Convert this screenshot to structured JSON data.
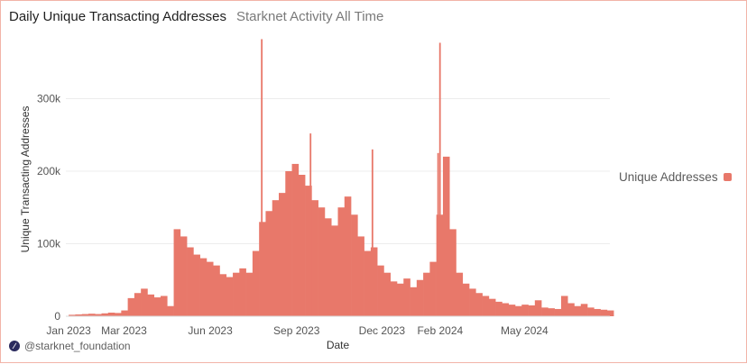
{
  "header": {
    "title": "Daily Unique Transacting Addresses",
    "subtitle": "Starknet Activity All Time"
  },
  "footer": {
    "handle": "@starknet_foundation",
    "logo_icon": "starknet-logo-icon"
  },
  "chart_data": {
    "type": "bar",
    "title": "Daily Unique Transacting Addresses",
    "subtitle": "Starknet Activity All Time",
    "xlabel": "Date",
    "ylabel": "Unique Transacting Addresses",
    "ylim": [
      0,
      390000
    ],
    "yticks": [
      0,
      100000,
      200000,
      300000
    ],
    "ytick_labels": [
      "0",
      "100k",
      "200k",
      "300k"
    ],
    "xticks": [
      "Jan 2023",
      "Mar 2023",
      "Jun 2023",
      "Sep 2023",
      "Dec 2023",
      "Feb 2024",
      "May 2024"
    ],
    "xtick_dates": [
      "2023-01-01",
      "2023-03-01",
      "2023-06-01",
      "2023-09-01",
      "2023-12-01",
      "2024-02-01",
      "2024-05-01"
    ],
    "date_start": "2022-12-29",
    "date_end": "2024-07-31",
    "grid": true,
    "legend": "right",
    "bar_color": "#e8786a",
    "series": [
      {
        "name": "Unique Addresses",
        "granularity": "weekly average",
        "x": [
          "2023-01-01",
          "2023-01-08",
          "2023-01-15",
          "2023-01-22",
          "2023-01-29",
          "2023-02-05",
          "2023-02-12",
          "2023-02-19",
          "2023-02-26",
          "2023-03-05",
          "2023-03-12",
          "2023-03-19",
          "2023-03-26",
          "2023-04-02",
          "2023-04-09",
          "2023-04-16",
          "2023-04-23",
          "2023-04-30",
          "2023-05-07",
          "2023-05-14",
          "2023-05-21",
          "2023-05-28",
          "2023-06-04",
          "2023-06-11",
          "2023-06-18",
          "2023-06-25",
          "2023-07-02",
          "2023-07-09",
          "2023-07-16",
          "2023-07-23",
          "2023-07-30",
          "2023-08-06",
          "2023-08-13",
          "2023-08-20",
          "2023-08-27",
          "2023-09-03",
          "2023-09-10",
          "2023-09-17",
          "2023-09-24",
          "2023-10-01",
          "2023-10-08",
          "2023-10-15",
          "2023-10-22",
          "2023-10-29",
          "2023-11-05",
          "2023-11-12",
          "2023-11-19",
          "2023-11-26",
          "2023-12-03",
          "2023-12-10",
          "2023-12-17",
          "2023-12-24",
          "2023-12-31",
          "2024-01-07",
          "2024-01-14",
          "2024-01-21",
          "2024-01-28",
          "2024-02-04",
          "2024-02-11",
          "2024-02-18",
          "2024-02-25",
          "2024-03-03",
          "2024-03-10",
          "2024-03-17",
          "2024-03-24",
          "2024-03-31",
          "2024-04-07",
          "2024-04-14",
          "2024-04-21",
          "2024-04-28",
          "2024-05-05",
          "2024-05-12",
          "2024-05-19",
          "2024-05-26",
          "2024-06-02",
          "2024-06-09",
          "2024-06-16",
          "2024-06-23",
          "2024-06-30",
          "2024-07-07",
          "2024-07-14",
          "2024-07-21",
          "2024-07-28"
        ],
        "values": [
          2000,
          2500,
          3000,
          3500,
          3000,
          4000,
          5000,
          4500,
          8000,
          25000,
          32000,
          38000,
          30000,
          26000,
          28000,
          14000,
          120000,
          110000,
          95000,
          85000,
          80000,
          75000,
          70000,
          58000,
          54000,
          60000,
          66000,
          60000,
          90000,
          130000,
          145000,
          160000,
          170000,
          200000,
          210000,
          195000,
          180000,
          160000,
          150000,
          135000,
          125000,
          150000,
          165000,
          140000,
          110000,
          90000,
          95000,
          70000,
          60000,
          48000,
          45000,
          52000,
          40000,
          50000,
          60000,
          75000,
          140000,
          220000,
          120000,
          60000,
          45000,
          38000,
          32000,
          28000,
          24000,
          20000,
          18000,
          16000,
          14000,
          16000,
          15000,
          22000,
          12000,
          11000,
          10000,
          28000,
          18000,
          14000,
          17000,
          12000,
          10000,
          9000,
          8000
        ]
      }
    ],
    "peaks": [
      {
        "date": "2023-07-25",
        "value": 382000
      },
      {
        "date": "2023-09-15",
        "value": 252000
      },
      {
        "date": "2023-11-20",
        "value": 230000
      },
      {
        "date": "2024-01-31",
        "value": 377000
      },
      {
        "date": "2024-01-29",
        "value": 225000
      }
    ]
  }
}
